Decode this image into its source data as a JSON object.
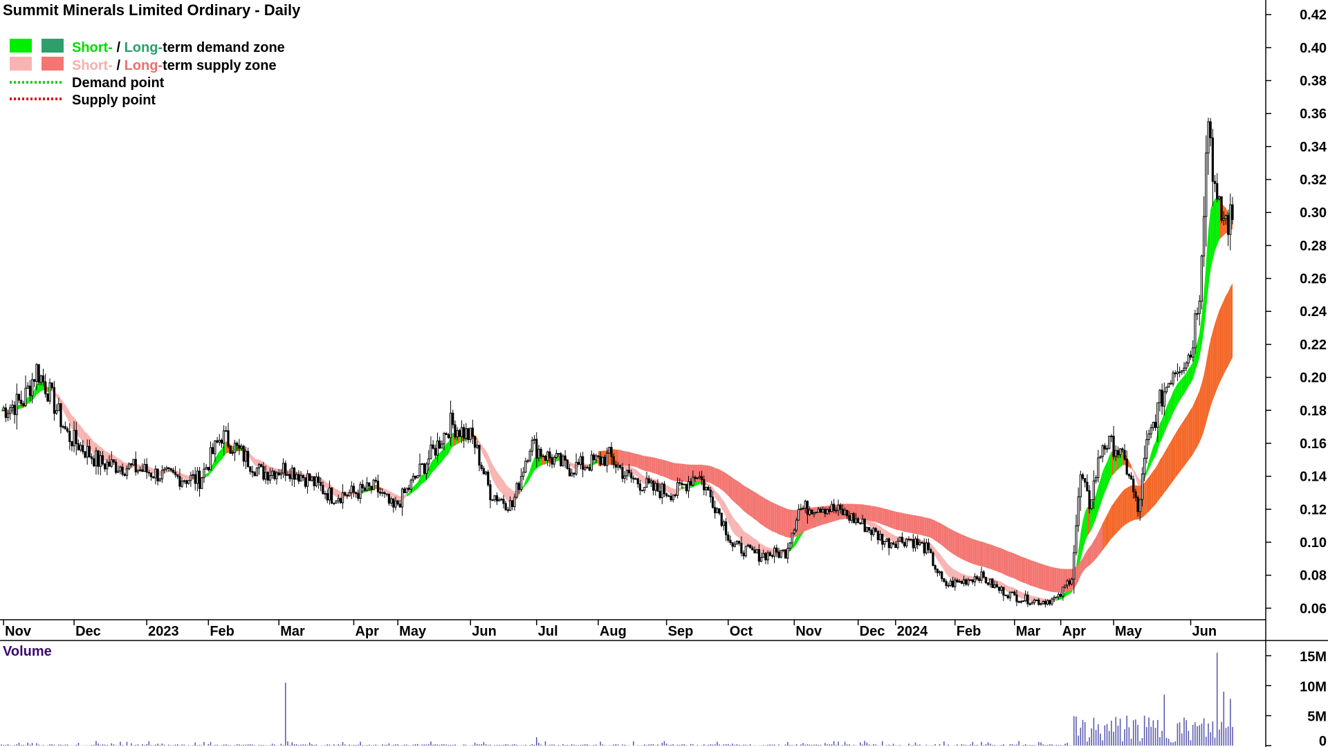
{
  "title": "Summit Minerals Limited Ordinary - Daily",
  "legend": {
    "short_demand": "Short-",
    "sep1": " / ",
    "long_demand": "Long-",
    "demand_zone_suffix": "term demand zone",
    "short_supply": "Short-",
    "sep2": " / ",
    "long_supply": "Long-",
    "supply_zone_suffix": "term supply zone",
    "demand_point": "Demand point",
    "supply_point": "Supply point"
  },
  "volume_title": "Volume",
  "colors": {
    "short_demand": "#00ee00",
    "long_demand": "#2e9e6a",
    "short_supply": "#f8b4b2",
    "long_supply": "#f37672",
    "orange_zone": "#f4682a",
    "demand_point": "#22cc22",
    "supply_point": "#dd1111",
    "candle": "#000000",
    "volume": "#5b5bb0",
    "volume_title": "#3a0a6a"
  },
  "chart_data": {
    "type": "candlestick",
    "title": "Summit Minerals Limited Ordinary - Daily",
    "y_ticks": [
      "0.06",
      "0.08",
      "0.10",
      "0.12",
      "0.14",
      "0.16",
      "0.18",
      "0.20",
      "0.22",
      "0.24",
      "0.26",
      "0.28",
      "0.30",
      "0.32",
      "0.34",
      "0.36",
      "0.38",
      "0.40",
      "0.42"
    ],
    "ylim": [
      0.053,
      0.423
    ],
    "x_labels": [
      "Nov",
      "Dec",
      "2023",
      "Feb",
      "Mar",
      "Apr",
      "May",
      "Jun",
      "Jul",
      "Aug",
      "Sep",
      "Oct",
      "Nov",
      "Dec",
      "2024",
      "Feb",
      "Mar",
      "Apr",
      "May",
      "Jun"
    ],
    "x_label_index": [
      1,
      33,
      66,
      94,
      126,
      160,
      180,
      213,
      243,
      271,
      302,
      330,
      360,
      389,
      406,
      433,
      460,
      481,
      505,
      540
    ],
    "n_days": 560,
    "price_anchors": [
      [
        0,
        0.18
      ],
      [
        10,
        0.186
      ],
      [
        16,
        0.205
      ],
      [
        22,
        0.19
      ],
      [
        30,
        0.165
      ],
      [
        45,
        0.148
      ],
      [
        60,
        0.145
      ],
      [
        75,
        0.14
      ],
      [
        90,
        0.138
      ],
      [
        100,
        0.165
      ],
      [
        108,
        0.155
      ],
      [
        118,
        0.142
      ],
      [
        130,
        0.145
      ],
      [
        140,
        0.138
      ],
      [
        150,
        0.128
      ],
      [
        160,
        0.13
      ],
      [
        170,
        0.133
      ],
      [
        178,
        0.12
      ],
      [
        186,
        0.135
      ],
      [
        196,
        0.155
      ],
      [
        204,
        0.172
      ],
      [
        214,
        0.163
      ],
      [
        222,
        0.13
      ],
      [
        232,
        0.122
      ],
      [
        240,
        0.16
      ],
      [
        248,
        0.152
      ],
      [
        258,
        0.145
      ],
      [
        268,
        0.148
      ],
      [
        276,
        0.152
      ],
      [
        284,
        0.14
      ],
      [
        296,
        0.132
      ],
      [
        306,
        0.13
      ],
      [
        316,
        0.142
      ],
      [
        326,
        0.118
      ],
      [
        332,
        0.098
      ],
      [
        344,
        0.092
      ],
      [
        356,
        0.094
      ],
      [
        362,
        0.12
      ],
      [
        372,
        0.122
      ],
      [
        382,
        0.118
      ],
      [
        392,
        0.11
      ],
      [
        402,
        0.1
      ],
      [
        412,
        0.102
      ],
      [
        420,
        0.096
      ],
      [
        428,
        0.074
      ],
      [
        436,
        0.076
      ],
      [
        444,
        0.08
      ],
      [
        452,
        0.072
      ],
      [
        462,
        0.066
      ],
      [
        472,
        0.064
      ],
      [
        480,
        0.066
      ],
      [
        486,
        0.08
      ],
      [
        490,
        0.14
      ],
      [
        494,
        0.123
      ],
      [
        500,
        0.16
      ],
      [
        506,
        0.158
      ],
      [
        512,
        0.142
      ],
      [
        516,
        0.118
      ],
      [
        520,
        0.158
      ],
      [
        526,
        0.185
      ],
      [
        532,
        0.205
      ],
      [
        536,
        0.21
      ],
      [
        540,
        0.215
      ],
      [
        544,
        0.255
      ],
      [
        548,
        0.36
      ],
      [
        552,
        0.3
      ],
      [
        556,
        0.295
      ]
    ],
    "volume": {
      "title": "Volume",
      "y_ticks": [
        "0",
        "5M",
        "10M",
        "15M"
      ],
      "ylim": [
        0,
        15
      ],
      "spikes": [
        [
          129,
          10.5
        ],
        [
          243,
          1.4
        ],
        [
          490,
          3.0
        ],
        [
          511,
          5.0
        ],
        [
          528,
          8.5
        ],
        [
          552,
          15.5
        ],
        [
          555,
          9.0
        ],
        [
          558,
          7.8
        ]
      ]
    }
  }
}
